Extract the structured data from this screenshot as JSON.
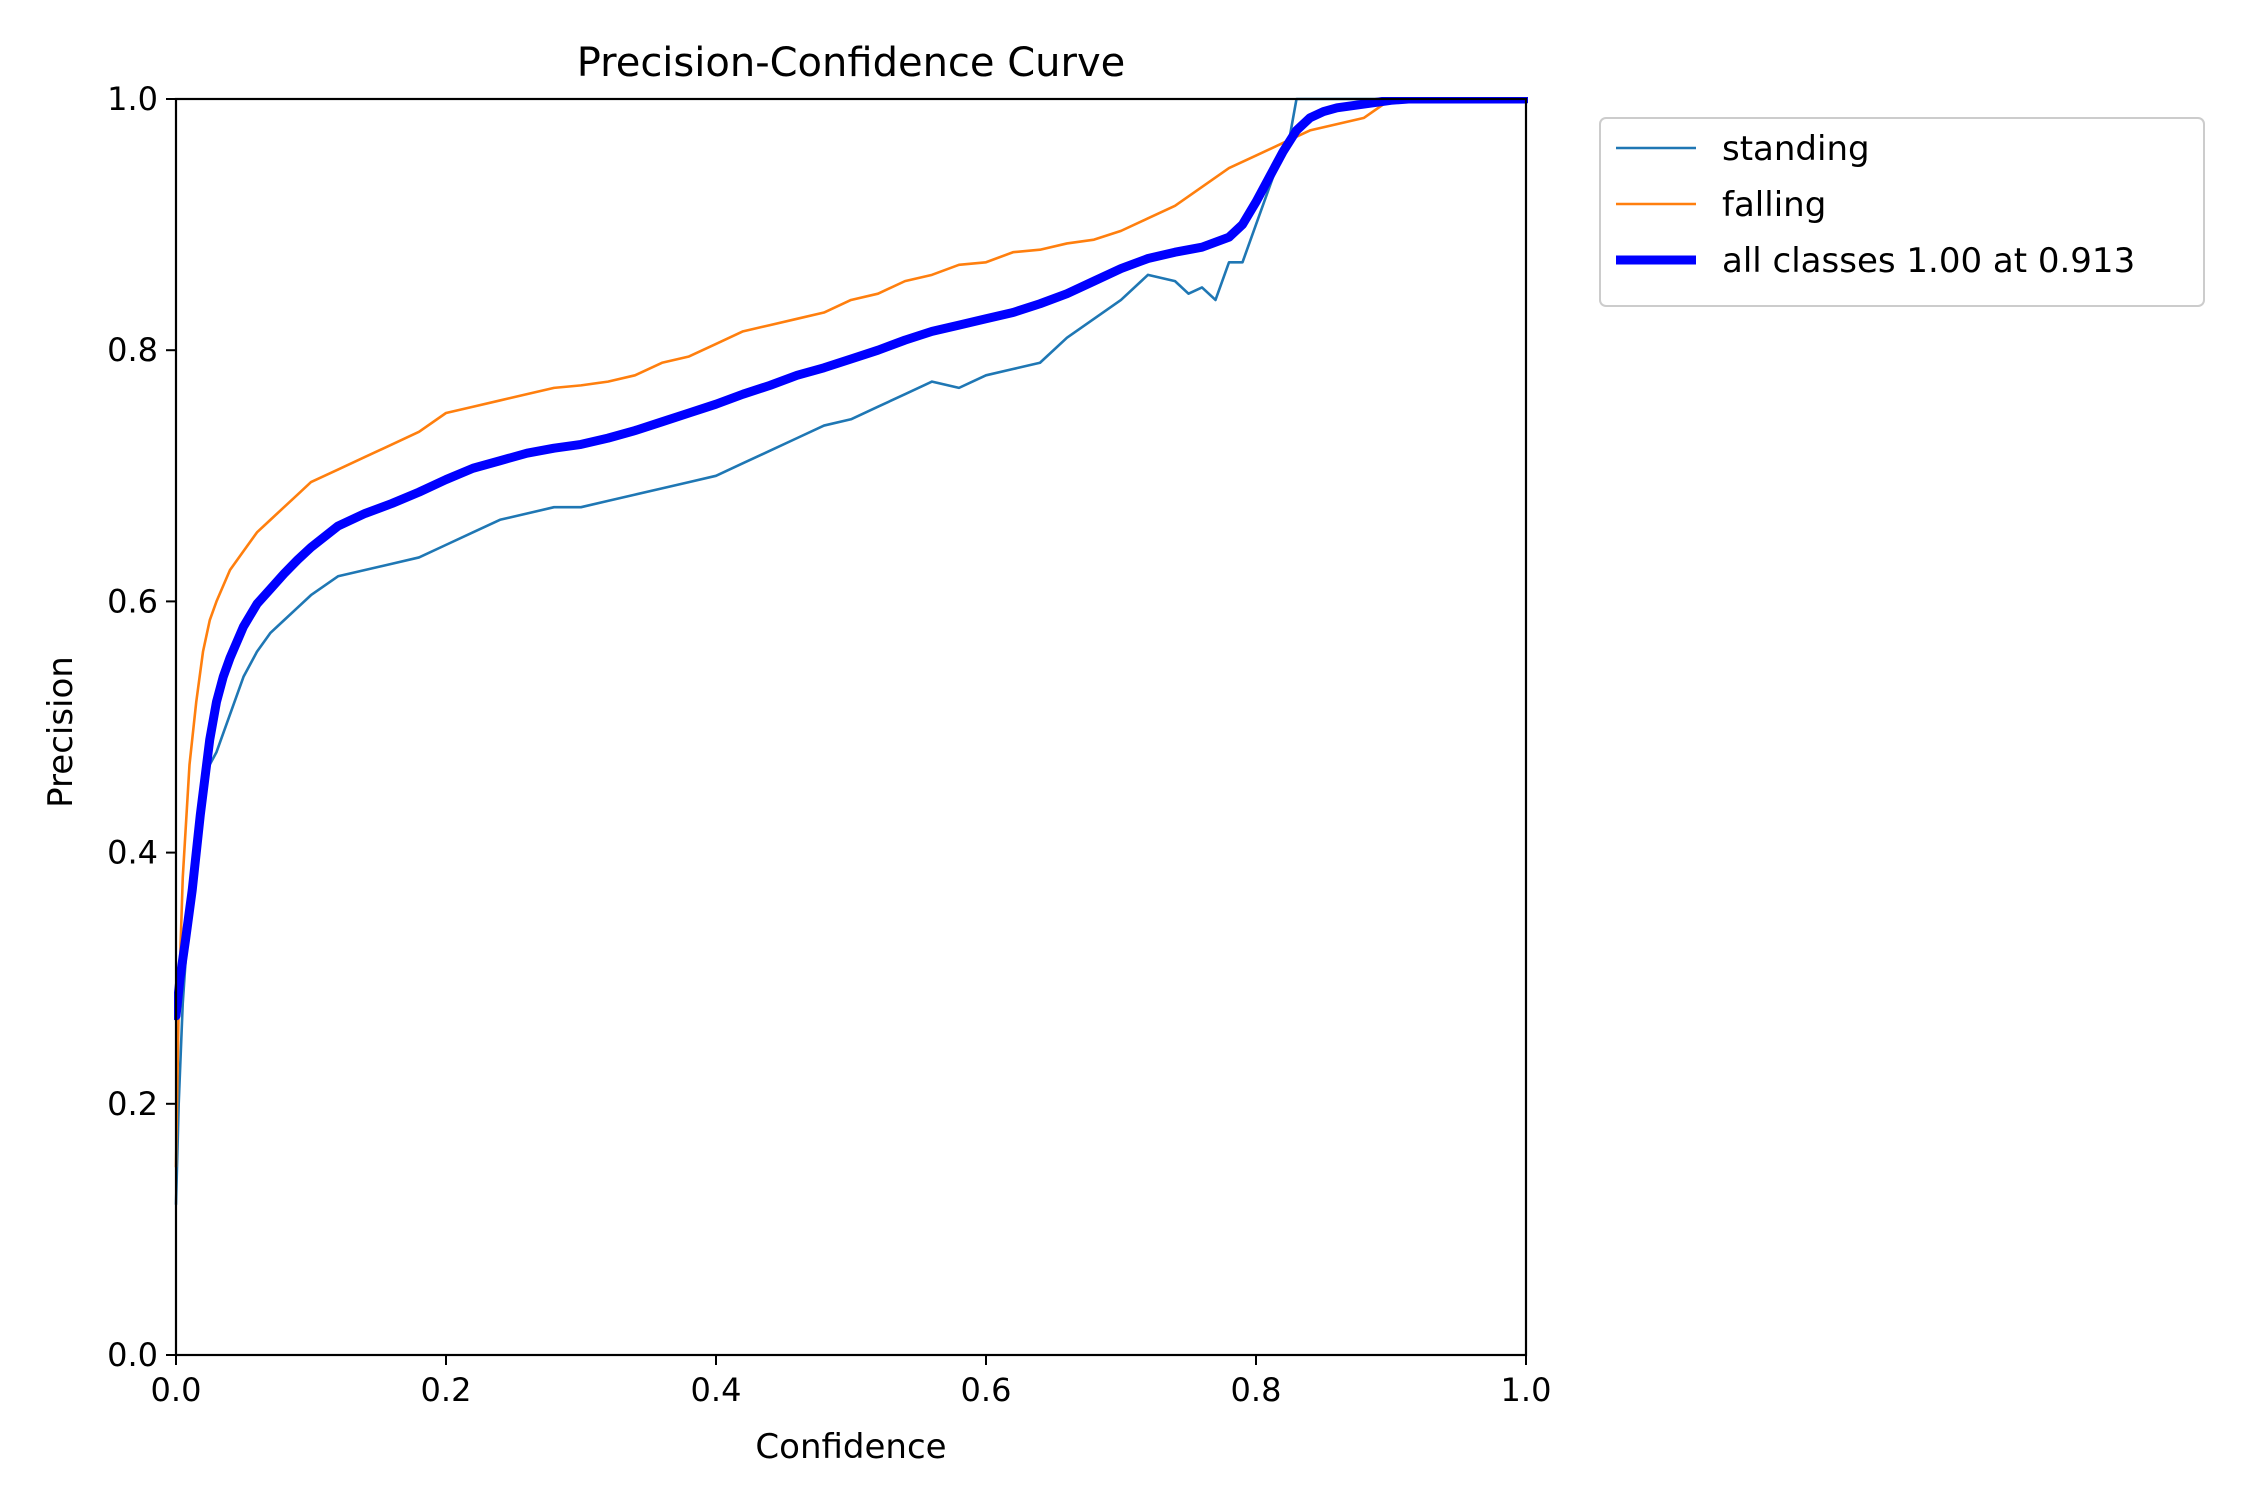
{
  "chart_data": {
    "type": "line",
    "title": "Precision-Confidence Curve",
    "xlabel": "Confidence",
    "ylabel": "Precision",
    "xlim": [
      0,
      1
    ],
    "ylim": [
      0,
      1
    ],
    "grid": false,
    "legend_position": "outside-top-right",
    "x_ticks": [
      "0.0",
      "0.2",
      "0.4",
      "0.6",
      "0.8",
      "1.0"
    ],
    "y_ticks": [
      "0.0",
      "0.2",
      "0.4",
      "0.6",
      "0.8",
      "1.0"
    ],
    "series": [
      {
        "name": "standing",
        "color": "#1f77b4",
        "style": "thin",
        "x": [
          0.0,
          0.002,
          0.005,
          0.01,
          0.015,
          0.02,
          0.025,
          0.03,
          0.04,
          0.05,
          0.06,
          0.07,
          0.08,
          0.09,
          0.1,
          0.12,
          0.14,
          0.16,
          0.18,
          0.2,
          0.22,
          0.24,
          0.26,
          0.28,
          0.3,
          0.32,
          0.34,
          0.36,
          0.38,
          0.4,
          0.42,
          0.44,
          0.46,
          0.48,
          0.5,
          0.52,
          0.54,
          0.56,
          0.58,
          0.6,
          0.62,
          0.64,
          0.66,
          0.68,
          0.7,
          0.72,
          0.74,
          0.75,
          0.76,
          0.77,
          0.78,
          0.79,
          0.8,
          0.81,
          0.82,
          0.825,
          0.83,
          0.85,
          0.9,
          0.95,
          1.0
        ],
        "y": [
          0.12,
          0.2,
          0.28,
          0.36,
          0.42,
          0.45,
          0.47,
          0.48,
          0.51,
          0.54,
          0.56,
          0.575,
          0.585,
          0.595,
          0.605,
          0.62,
          0.625,
          0.63,
          0.635,
          0.645,
          0.655,
          0.665,
          0.67,
          0.675,
          0.675,
          0.68,
          0.685,
          0.69,
          0.695,
          0.7,
          0.71,
          0.72,
          0.73,
          0.74,
          0.745,
          0.755,
          0.765,
          0.775,
          0.77,
          0.78,
          0.785,
          0.79,
          0.81,
          0.825,
          0.84,
          0.86,
          0.855,
          0.845,
          0.85,
          0.84,
          0.87,
          0.87,
          0.9,
          0.93,
          0.96,
          0.97,
          1.0,
          1.0,
          1.0,
          1.0,
          1.0
        ]
      },
      {
        "name": "falling",
        "color": "#ff7f0e",
        "style": "thin",
        "x": [
          0.0,
          0.002,
          0.005,
          0.01,
          0.015,
          0.02,
          0.025,
          0.03,
          0.04,
          0.05,
          0.06,
          0.07,
          0.08,
          0.09,
          0.1,
          0.12,
          0.14,
          0.16,
          0.18,
          0.2,
          0.22,
          0.24,
          0.26,
          0.28,
          0.3,
          0.32,
          0.34,
          0.36,
          0.38,
          0.4,
          0.42,
          0.44,
          0.46,
          0.48,
          0.5,
          0.52,
          0.54,
          0.56,
          0.58,
          0.6,
          0.62,
          0.64,
          0.66,
          0.68,
          0.7,
          0.72,
          0.74,
          0.76,
          0.78,
          0.8,
          0.82,
          0.84,
          0.86,
          0.88,
          0.9,
          0.95,
          1.0
        ],
        "y": [
          0.15,
          0.28,
          0.38,
          0.47,
          0.52,
          0.56,
          0.585,
          0.6,
          0.625,
          0.64,
          0.655,
          0.665,
          0.675,
          0.685,
          0.695,
          0.705,
          0.715,
          0.725,
          0.735,
          0.75,
          0.755,
          0.76,
          0.765,
          0.77,
          0.772,
          0.775,
          0.78,
          0.79,
          0.795,
          0.805,
          0.815,
          0.82,
          0.825,
          0.83,
          0.84,
          0.845,
          0.855,
          0.86,
          0.868,
          0.87,
          0.878,
          0.88,
          0.885,
          0.888,
          0.895,
          0.905,
          0.915,
          0.93,
          0.945,
          0.955,
          0.965,
          0.975,
          0.98,
          0.985,
          1.0,
          1.0,
          1.0
        ]
      },
      {
        "name": "all classes 1.00 at 0.913",
        "color": "#0000ff",
        "style": "thick",
        "x": [
          0.0,
          0.003,
          0.007,
          0.012,
          0.018,
          0.025,
          0.03,
          0.035,
          0.04,
          0.05,
          0.06,
          0.07,
          0.08,
          0.09,
          0.1,
          0.12,
          0.14,
          0.16,
          0.18,
          0.2,
          0.22,
          0.24,
          0.26,
          0.28,
          0.3,
          0.32,
          0.34,
          0.36,
          0.38,
          0.4,
          0.42,
          0.44,
          0.46,
          0.48,
          0.5,
          0.52,
          0.54,
          0.56,
          0.58,
          0.6,
          0.62,
          0.64,
          0.66,
          0.68,
          0.7,
          0.72,
          0.74,
          0.76,
          0.77,
          0.78,
          0.79,
          0.8,
          0.81,
          0.82,
          0.83,
          0.84,
          0.85,
          0.86,
          0.88,
          0.9,
          0.913,
          0.95,
          1.0
        ],
        "y": [
          0.27,
          0.3,
          0.33,
          0.37,
          0.43,
          0.49,
          0.52,
          0.54,
          0.555,
          0.58,
          0.598,
          0.61,
          0.622,
          0.633,
          0.643,
          0.66,
          0.67,
          0.678,
          0.687,
          0.697,
          0.706,
          0.712,
          0.718,
          0.722,
          0.725,
          0.73,
          0.736,
          0.743,
          0.75,
          0.757,
          0.765,
          0.772,
          0.78,
          0.786,
          0.793,
          0.8,
          0.808,
          0.815,
          0.82,
          0.825,
          0.83,
          0.837,
          0.845,
          0.855,
          0.865,
          0.873,
          0.878,
          0.882,
          0.886,
          0.89,
          0.9,
          0.918,
          0.938,
          0.958,
          0.975,
          0.985,
          0.99,
          0.993,
          0.996,
          0.999,
          1.0,
          1.0,
          1.0
        ]
      }
    ]
  }
}
